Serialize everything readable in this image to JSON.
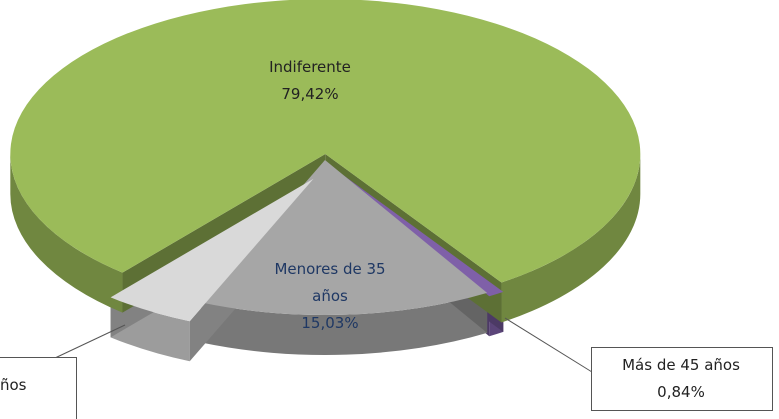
{
  "chart_data": {
    "type": "pie3d",
    "categories": [
      "Más de 45 años",
      "Menores de 35 años",
      "ños",
      "Indiferente"
    ],
    "values": [
      0.84,
      15.03,
      4.71,
      79.42
    ],
    "value_labels": [
      "0,84%",
      "15,03%",
      null,
      "79,42%"
    ],
    "colors": [
      "#7f60a8",
      "#a6a6a6",
      "#d9d9d9",
      "#9bbb59"
    ]
  }
}
